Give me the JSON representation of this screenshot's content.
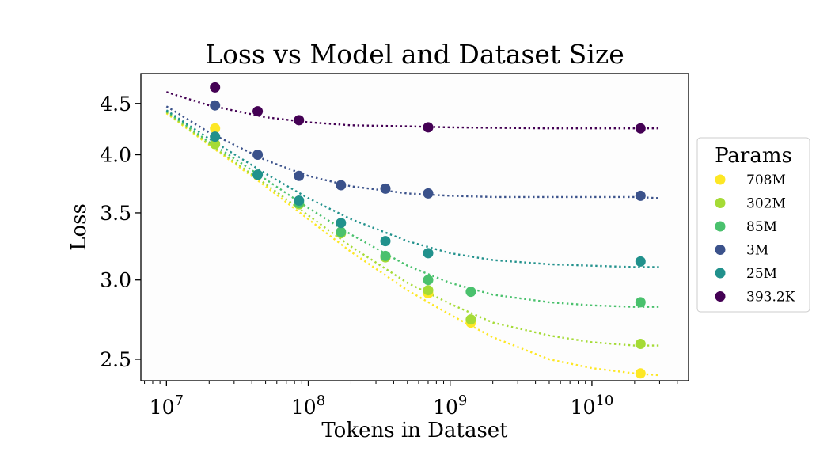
{
  "chart_data": {
    "type": "scatter",
    "title": "Loss vs Model and Dataset Size",
    "xlabel": "Tokens in Dataset",
    "ylabel": "Loss",
    "xscale": "log",
    "yscale": "log",
    "xlim": [
      6600000,
      48000000000
    ],
    "ylim": [
      2.38,
      4.82
    ],
    "x_ticks": [
      {
        "value": 10000000,
        "base": "10",
        "exp": "7"
      },
      {
        "value": 100000000,
        "base": "10",
        "exp": "8"
      },
      {
        "value": 1000000000,
        "base": "10",
        "exp": "9"
      },
      {
        "value": 10000000000,
        "base": "10",
        "exp": "10"
      }
    ],
    "y_ticks": [
      {
        "value": 2.5,
        "label": "2.5"
      },
      {
        "value": 3.0,
        "label": "3.0"
      },
      {
        "value": 3.5,
        "label": "3.5"
      },
      {
        "value": 4.0,
        "label": "4.0"
      },
      {
        "value": 4.5,
        "label": "4.5"
      }
    ],
    "legend": {
      "title": "Params",
      "placement": "right"
    },
    "series": [
      {
        "name": "708M",
        "color": "#fde725",
        "points": [
          [
            22000000,
            4.25
          ],
          [
            700000000,
            2.91
          ],
          [
            1400000000,
            2.72
          ],
          [
            22000000000,
            2.42
          ]
        ],
        "fit": [
          [
            10000000,
            4.4
          ],
          [
            20000000,
            4.09
          ],
          [
            50000000,
            3.72
          ],
          [
            100000000,
            3.45
          ],
          [
            200000000,
            3.2
          ],
          [
            500000000,
            2.93
          ],
          [
            1000000000,
            2.77
          ],
          [
            2000000000,
            2.63
          ],
          [
            5000000000,
            2.5
          ],
          [
            10000000000,
            2.45
          ],
          [
            20000000000,
            2.42
          ],
          [
            30000000000,
            2.41
          ]
        ]
      },
      {
        "name": "302M",
        "color": "#a5db36",
        "points": [
          [
            22000000,
            4.1
          ],
          [
            86000000,
            3.57
          ],
          [
            170000000,
            3.34
          ],
          [
            350000000,
            3.16
          ],
          [
            700000000,
            2.93
          ],
          [
            1400000000,
            2.74
          ],
          [
            22000000000,
            2.59
          ]
        ],
        "fit": [
          [
            10000000,
            4.41
          ],
          [
            20000000,
            4.1
          ],
          [
            50000000,
            3.74
          ],
          [
            100000000,
            3.48
          ],
          [
            200000000,
            3.24
          ],
          [
            500000000,
            2.98
          ],
          [
            1000000000,
            2.84
          ],
          [
            2000000000,
            2.72
          ],
          [
            5000000000,
            2.64
          ],
          [
            10000000000,
            2.6
          ],
          [
            20000000000,
            2.58
          ],
          [
            30000000000,
            2.58
          ]
        ]
      },
      {
        "name": "85M",
        "color": "#4ac16d",
        "points": [
          [
            44000000,
            3.82
          ],
          [
            86000000,
            3.58
          ],
          [
            170000000,
            3.35
          ],
          [
            350000000,
            3.17
          ],
          [
            700000000,
            3.0
          ],
          [
            1400000000,
            2.92
          ],
          [
            22000000000,
            2.85
          ]
        ],
        "fit": [
          [
            10000000,
            4.42
          ],
          [
            20000000,
            4.12
          ],
          [
            50000000,
            3.78
          ],
          [
            100000000,
            3.54
          ],
          [
            200000000,
            3.33
          ],
          [
            500000000,
            3.1
          ],
          [
            1000000000,
            2.98
          ],
          [
            2000000000,
            2.9
          ],
          [
            5000000000,
            2.85
          ],
          [
            10000000000,
            2.83
          ],
          [
            20000000000,
            2.82
          ],
          [
            30000000000,
            2.82
          ]
        ]
      },
      {
        "name": "3M",
        "color": "#3b528b",
        "points": [
          [
            22000000,
            4.48
          ],
          [
            44000000,
            4.0
          ],
          [
            86000000,
            3.81
          ],
          [
            170000000,
            3.73
          ],
          [
            350000000,
            3.7
          ],
          [
            700000000,
            3.66
          ],
          [
            22000000000,
            3.64
          ]
        ],
        "fit": [
          [
            10000000,
            4.47
          ],
          [
            20000000,
            4.21
          ],
          [
            50000000,
            3.95
          ],
          [
            100000000,
            3.81
          ],
          [
            200000000,
            3.72
          ],
          [
            500000000,
            3.66
          ],
          [
            1000000000,
            3.64
          ],
          [
            2000000000,
            3.63
          ],
          [
            5000000000,
            3.63
          ],
          [
            10000000000,
            3.63
          ],
          [
            20000000000,
            3.63
          ],
          [
            30000000000,
            3.62
          ]
        ]
      },
      {
        "name": "25M",
        "color": "#21918c",
        "points": [
          [
            22000000,
            4.17
          ],
          [
            44000000,
            3.82
          ],
          [
            86000000,
            3.6
          ],
          [
            170000000,
            3.42
          ],
          [
            350000000,
            3.28
          ],
          [
            700000000,
            3.19
          ],
          [
            22000000000,
            3.13
          ]
        ],
        "fit": [
          [
            10000000,
            4.43
          ],
          [
            20000000,
            4.15
          ],
          [
            50000000,
            3.83
          ],
          [
            100000000,
            3.62
          ],
          [
            200000000,
            3.45
          ],
          [
            500000000,
            3.28
          ],
          [
            1000000000,
            3.19
          ],
          [
            2000000000,
            3.14
          ],
          [
            5000000000,
            3.11
          ],
          [
            10000000000,
            3.1
          ],
          [
            20000000000,
            3.09
          ],
          [
            30000000000,
            3.09
          ]
        ]
      },
      {
        "name": "393.2K",
        "color": "#440154",
        "points": [
          [
            22000000,
            4.67
          ],
          [
            44000000,
            4.42
          ],
          [
            86000000,
            4.33
          ],
          [
            700000000,
            4.26
          ],
          [
            22000000000,
            4.25
          ]
        ],
        "fit": [
          [
            10000000,
            4.62
          ],
          [
            20000000,
            4.48
          ],
          [
            50000000,
            4.36
          ],
          [
            100000000,
            4.31
          ],
          [
            200000000,
            4.28
          ],
          [
            500000000,
            4.27
          ],
          [
            1000000000,
            4.26
          ],
          [
            5000000000,
            4.25
          ],
          [
            10000000000,
            4.25
          ],
          [
            30000000000,
            4.25
          ]
        ]
      }
    ]
  }
}
